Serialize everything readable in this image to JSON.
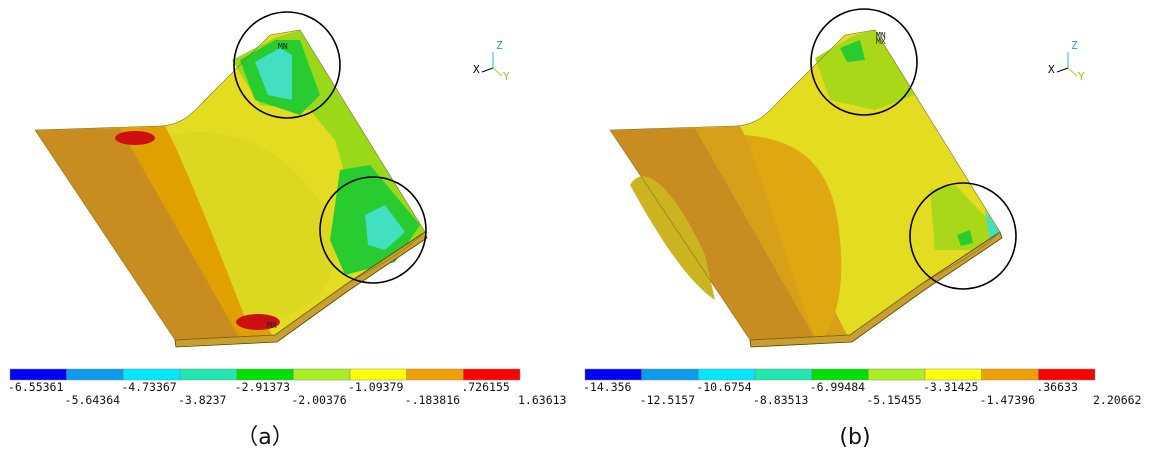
{
  "panels": [
    {
      "caption": "（a）",
      "min_label": "MN",
      "max_label": "MX",
      "triad": {
        "x": "X",
        "y": "Y",
        "z": "Z"
      },
      "colorbar": {
        "top_labels": [
          "-6.55361",
          "-4.73367",
          "-2.91373",
          "-1.09379",
          ".726155"
        ],
        "bottom_labels": [
          "-5.64364",
          "-3.8237",
          "-2.00376",
          "-.183816",
          "1.63613"
        ]
      }
    },
    {
      "caption": "(b)",
      "min_label": "MN",
      "max_label": "MX",
      "triad": {
        "x": "X",
        "y": "Y",
        "z": "Z"
      },
      "colorbar": {
        "top_labels": [
          "-14.356",
          "-10.6754",
          "-6.99484",
          "-3.31425",
          ".36633"
        ],
        "bottom_labels": [
          "-12.5157",
          "-8.83513",
          "-5.15455",
          "-1.47396",
          "2.20662"
        ]
      }
    }
  ]
}
